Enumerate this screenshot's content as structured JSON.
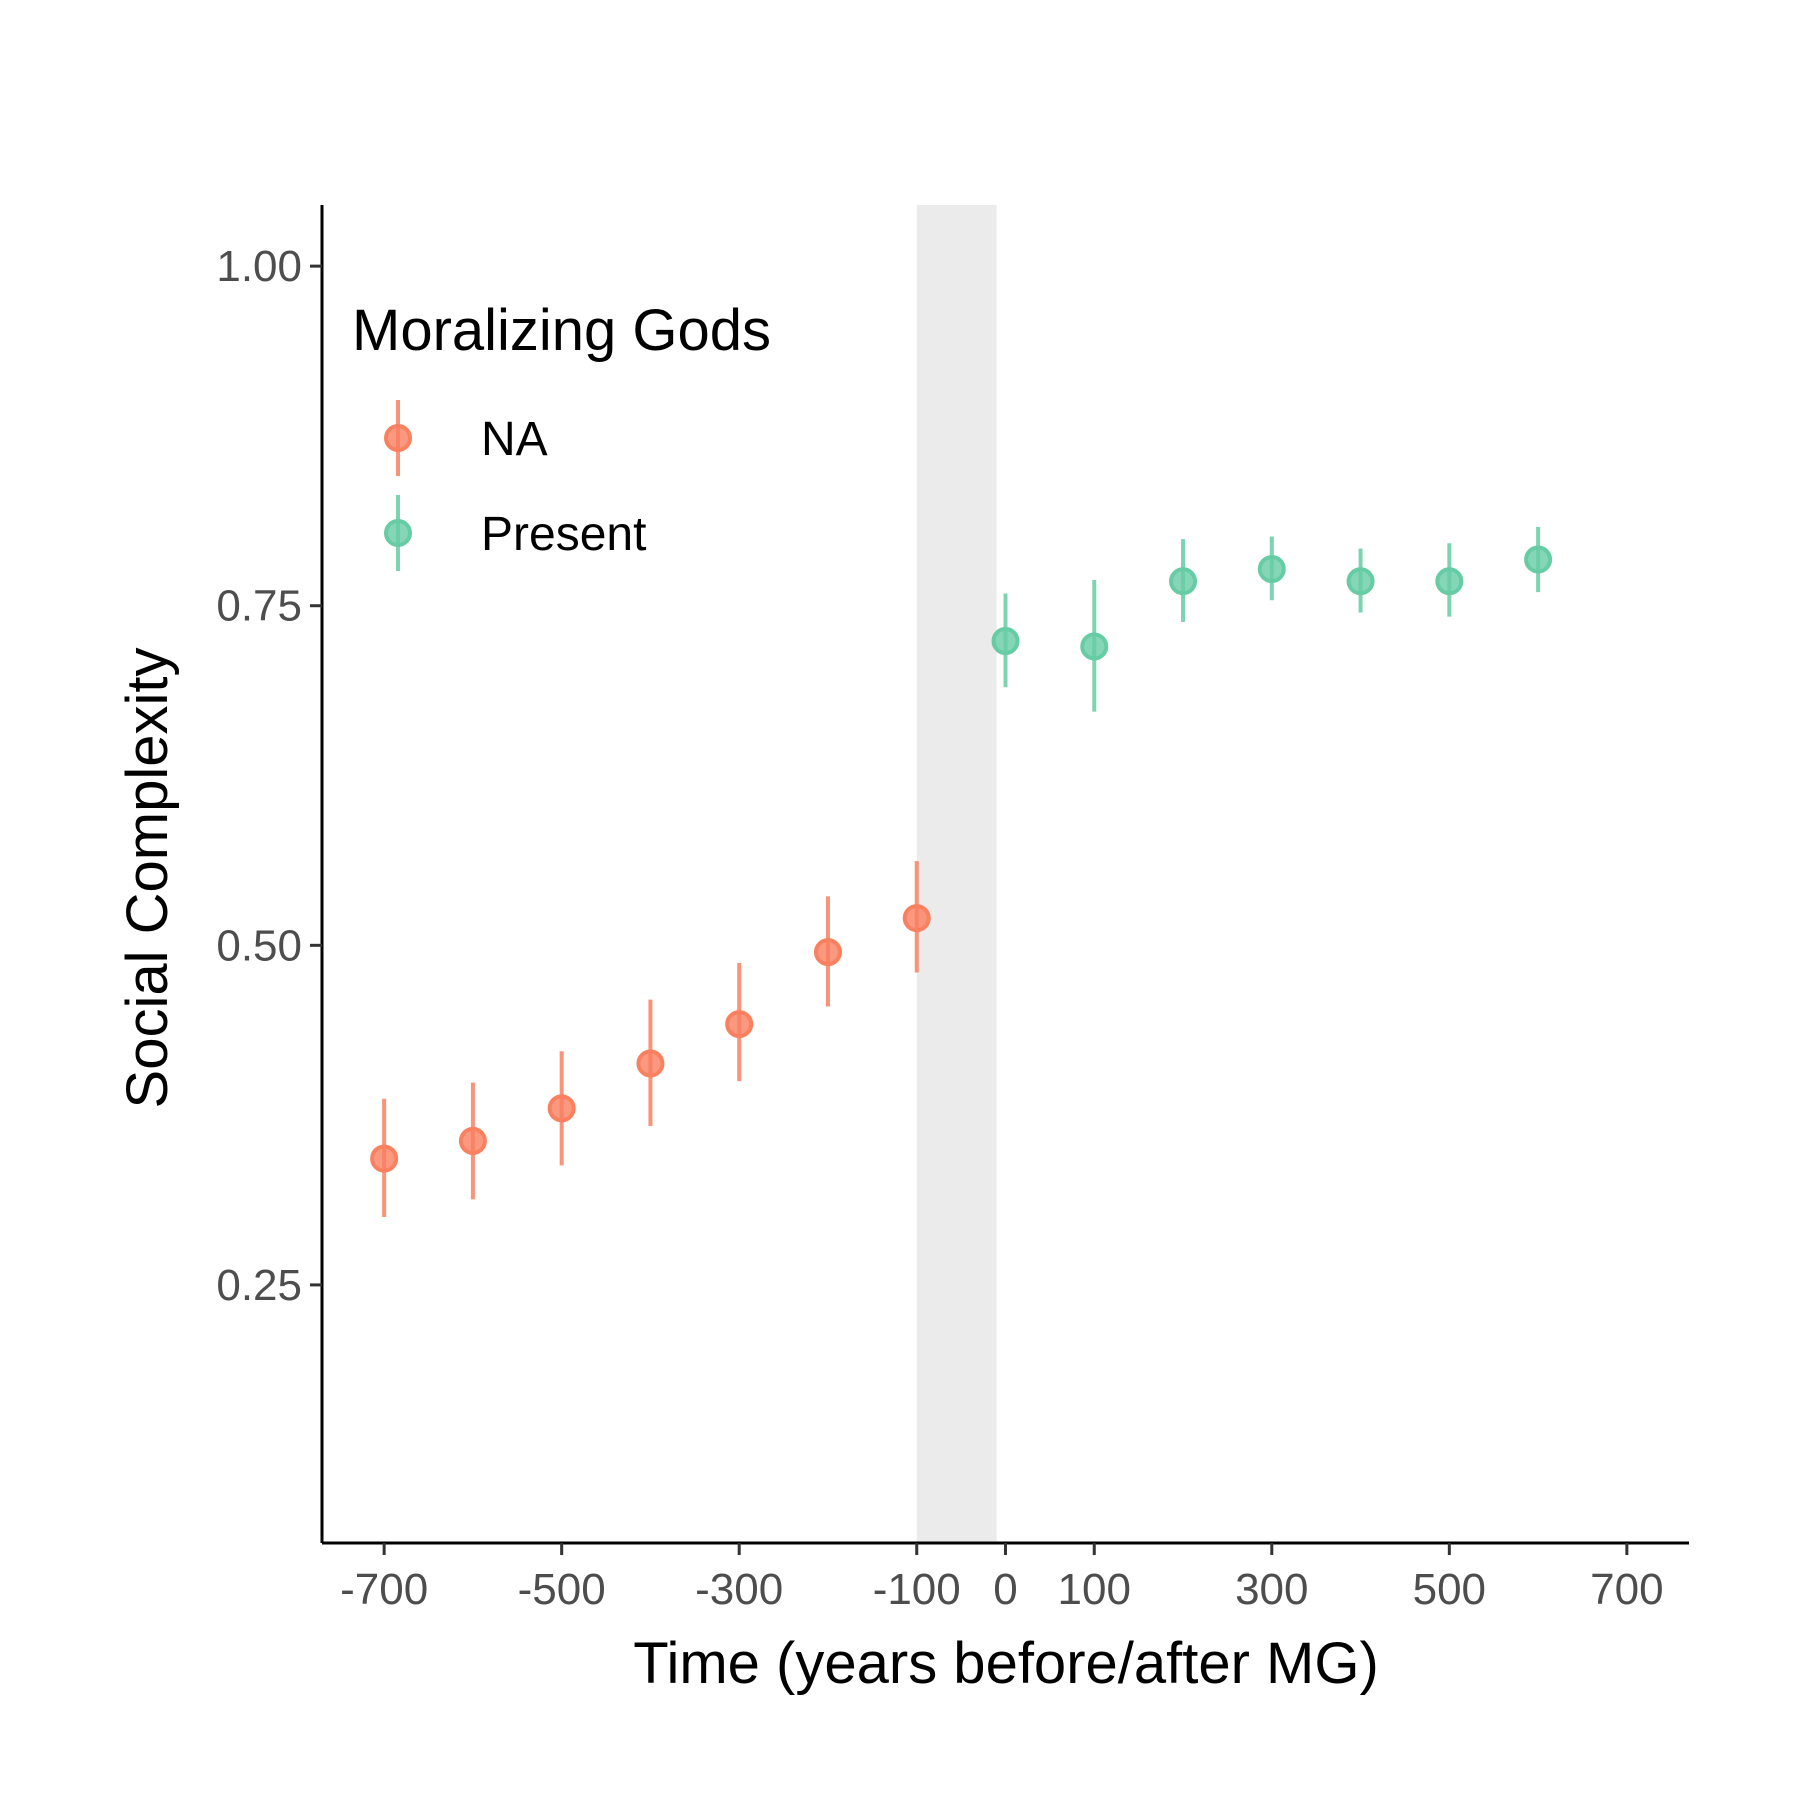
{
  "chart_data": {
    "type": "scatter",
    "xlabel": "Time (years before/after MG)",
    "ylabel": "Social Complexity",
    "xlim": [
      -770,
      770
    ],
    "ylim": [
      0.06,
      1.045
    ],
    "x_ticks": [
      -700,
      -500,
      -300,
      -100,
      0,
      100,
      300,
      500,
      700
    ],
    "x_tick_labels": [
      "-700",
      "-500",
      "-300",
      "-100",
      "0",
      "100",
      "300",
      "500",
      "700"
    ],
    "y_ticks": [
      0.25,
      0.5,
      0.75,
      1.0
    ],
    "y_tick_labels": [
      "0.25",
      "0.50",
      "0.75",
      "1.00"
    ],
    "shaded_region": {
      "x": [
        -100,
        -10
      ],
      "color": "#ebebeb"
    },
    "grid": false,
    "legend": {
      "title": "Moralizing Gods",
      "placement": "top-left",
      "entries": [
        "NA",
        "Present"
      ]
    },
    "series": [
      {
        "name": "NA",
        "color": "#fa8060",
        "points": [
          {
            "x": -700,
            "y": 0.343,
            "ymin": 0.3,
            "ymax": 0.387
          },
          {
            "x": -600,
            "y": 0.356,
            "ymin": 0.313,
            "ymax": 0.399
          },
          {
            "x": -500,
            "y": 0.38,
            "ymin": 0.338,
            "ymax": 0.422
          },
          {
            "x": -400,
            "y": 0.413,
            "ymin": 0.367,
            "ymax": 0.46
          },
          {
            "x": -300,
            "y": 0.442,
            "ymin": 0.4,
            "ymax": 0.487
          },
          {
            "x": -200,
            "y": 0.495,
            "ymin": 0.455,
            "ymax": 0.536
          },
          {
            "x": -100,
            "y": 0.52,
            "ymin": 0.48,
            "ymax": 0.562
          }
        ]
      },
      {
        "name": "Present",
        "color": "#66cca4",
        "points": [
          {
            "x": 0,
            "y": 0.724,
            "ymin": 0.69,
            "ymax": 0.759
          },
          {
            "x": 100,
            "y": 0.72,
            "ymin": 0.672,
            "ymax": 0.769
          },
          {
            "x": 200,
            "y": 0.768,
            "ymin": 0.738,
            "ymax": 0.799
          },
          {
            "x": 300,
            "y": 0.777,
            "ymin": 0.754,
            "ymax": 0.801
          },
          {
            "x": 400,
            "y": 0.768,
            "ymin": 0.745,
            "ymax": 0.792
          },
          {
            "x": 500,
            "y": 0.768,
            "ymin": 0.742,
            "ymax": 0.796
          },
          {
            "x": 600,
            "y": 0.784,
            "ymin": 0.76,
            "ymax": 0.808
          }
        ]
      }
    ]
  }
}
